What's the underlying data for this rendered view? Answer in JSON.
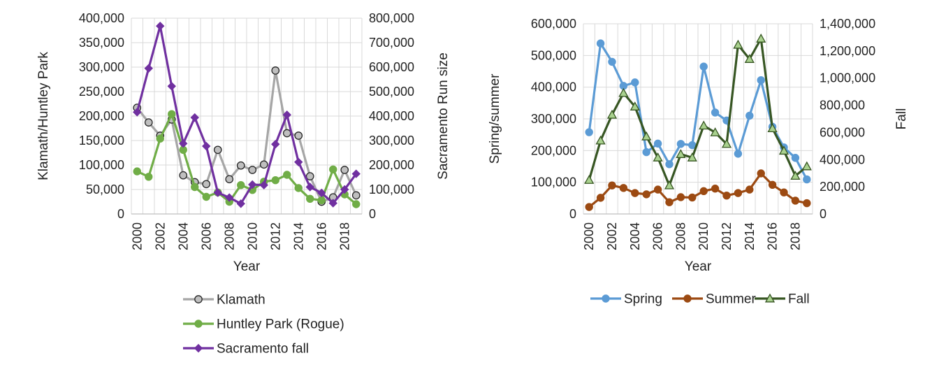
{
  "chart_data": [
    {
      "type": "line",
      "x": [
        2000,
        2001,
        2002,
        2003,
        2004,
        2005,
        2006,
        2007,
        2008,
        2009,
        2010,
        2011,
        2012,
        2013,
        2014,
        2015,
        2016,
        2017,
        2018,
        2019
      ],
      "x_tick_labels": [
        "2000",
        "2002",
        "2004",
        "2006",
        "2008",
        "2010",
        "2012",
        "2014",
        "2016",
        "2018"
      ],
      "xlabel": "Year",
      "ylabel_left": "Klamath/Huntley Park",
      "ylabel_right": "Sacramento Run size",
      "ylim_left": [
        0,
        400000
      ],
      "ylim_right": [
        0,
        800000
      ],
      "y_ticks_left": [
        "0",
        "50,000",
        "100,000",
        "150,000",
        "200,000",
        "250,000",
        "300,000",
        "350,000",
        "400,000"
      ],
      "y_ticks_right": [
        "0",
        "100,000",
        "200,000",
        "300,000",
        "400,000",
        "500,000",
        "600,000",
        "700,000",
        "800,000"
      ],
      "grid": true,
      "legend_position": "bottom",
      "series": [
        {
          "name": "Klamath",
          "axis": "left",
          "color": "#a6a6a6",
          "marker": "circle",
          "marker_fill": "#bfbfbf",
          "values": [
            217000,
            187000,
            160000,
            193000,
            79000,
            65000,
            61000,
            131000,
            71000,
            99000,
            90000,
            101000,
            293000,
            165000,
            160000,
            77000,
            25000,
            34000,
            90000,
            38000
          ]
        },
        {
          "name": "Huntley Park (Rogue)",
          "axis": "left",
          "color": "#70ad47",
          "marker": "circle",
          "marker_fill": "#70ad47",
          "values": [
            87000,
            76000,
            154000,
            204000,
            131000,
            55000,
            35000,
            44000,
            25000,
            59000,
            49000,
            66000,
            69000,
            80000,
            53000,
            31000,
            28000,
            91000,
            40000,
            20000
          ]
        },
        {
          "name": "Sacramento fall",
          "axis": "right",
          "color": "#7030a0",
          "marker": "diamond",
          "marker_fill": "#7030a0",
          "values": [
            416000,
            595000,
            768000,
            522000,
            288000,
            394000,
            277000,
            87000,
            67000,
            42000,
            120000,
            118000,
            285000,
            405000,
            212000,
            110000,
            86000,
            44000,
            100000,
            164000
          ]
        }
      ]
    },
    {
      "type": "line",
      "x": [
        2000,
        2001,
        2002,
        2003,
        2004,
        2005,
        2006,
        2007,
        2008,
        2009,
        2010,
        2011,
        2012,
        2013,
        2014,
        2015,
        2016,
        2017,
        2018,
        2019
      ],
      "x_tick_labels": [
        "2000",
        "2002",
        "2004",
        "2006",
        "2008",
        "2010",
        "2012",
        "2014",
        "2016",
        "2018"
      ],
      "xlabel": "Year",
      "ylabel_left": "Spring/summer",
      "ylabel_right": "Fall",
      "ylim_left": [
        0,
        600000
      ],
      "ylim_right": [
        0,
        1400000
      ],
      "y_ticks_left": [
        "0",
        "100,000",
        "200,000",
        "300,000",
        "400,000",
        "500,000",
        "600,000"
      ],
      "y_ticks_right": [
        "0",
        "200,000",
        "400,000",
        "600,000",
        "800,000",
        "1,000,000",
        "1,200,000",
        "1,400,000"
      ],
      "grid": true,
      "legend_position": "bottom",
      "series": [
        {
          "name": "Spring",
          "axis": "left",
          "color": "#5b9bd5",
          "marker": "circle",
          "marker_fill": "#5b9bd5",
          "values": [
            258000,
            538000,
            480000,
            404000,
            415000,
            195000,
            222000,
            157000,
            221000,
            217000,
            465000,
            320000,
            295000,
            190000,
            310000,
            422000,
            275000,
            210000,
            177000,
            109000
          ]
        },
        {
          "name": "Summer",
          "axis": "left",
          "color": "#9c4a12",
          "marker": "circle",
          "marker_fill": "#9c4a12",
          "values": [
            22000,
            51000,
            90000,
            82000,
            66000,
            62000,
            77000,
            37000,
            53000,
            52000,
            72000,
            80000,
            58000,
            66000,
            77000,
            128000,
            92000,
            68000,
            42000,
            34000
          ]
        },
        {
          "name": "Fall",
          "axis": "right",
          "color": "#375623",
          "marker": "triangle",
          "marker_fill": "#a9d18e",
          "values": [
            250000,
            540000,
            730000,
            890000,
            790000,
            570000,
            415000,
            210000,
            440000,
            415000,
            650000,
            600000,
            515000,
            1245000,
            1140000,
            1290000,
            630000,
            465000,
            280000,
            350000
          ]
        }
      ]
    }
  ]
}
